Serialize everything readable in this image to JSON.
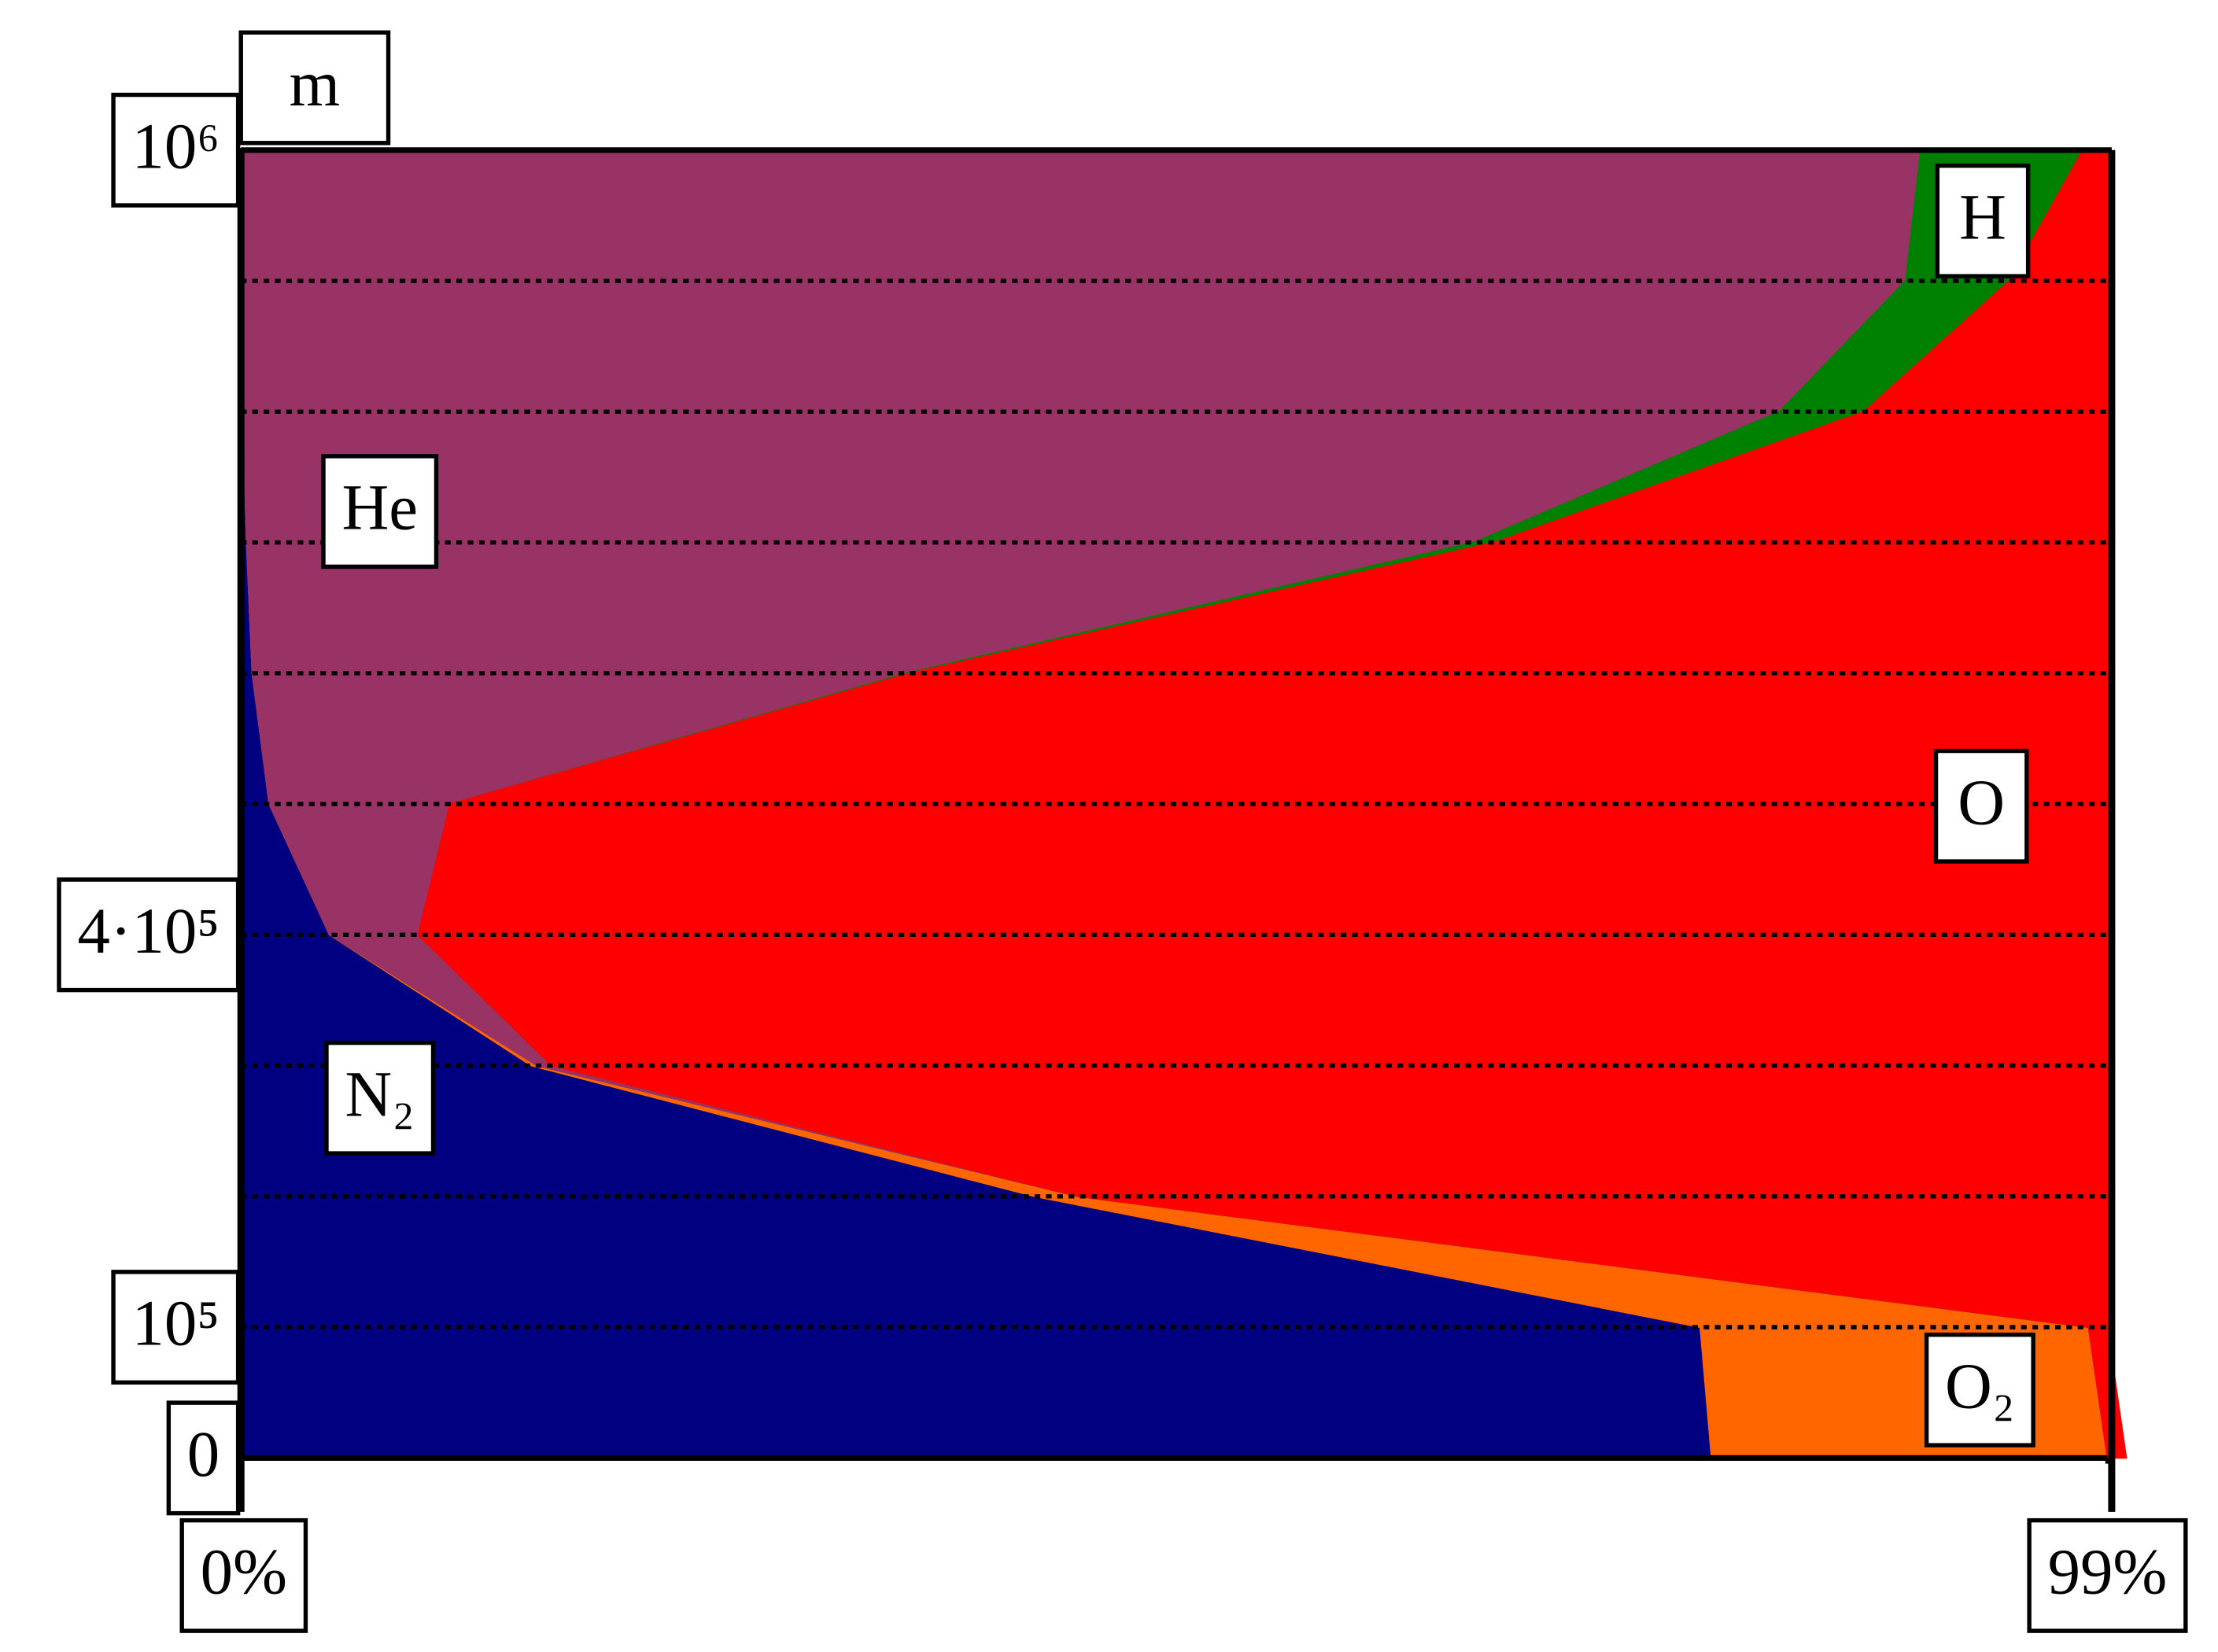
{
  "chart_data": {
    "type": "area",
    "stacked": true,
    "orientation": "horizontal",
    "y_unit_label": "m",
    "y": [
      0,
      100000,
      200000,
      300000,
      400000,
      500000,
      600000,
      700000,
      800000,
      900000,
      1000000
    ],
    "series": [
      {
        "name": "N₂",
        "color": "#000080",
        "values": [
          78.0,
          77.4,
          42.1,
          15.4,
          4.7,
          1.5,
          0.6,
          0.3,
          0.1,
          0,
          0
        ]
      },
      {
        "name": "O₂",
        "color": "#ff6600",
        "values": [
          21.0,
          20.6,
          2.3,
          0.3,
          0,
          0,
          0,
          0,
          0,
          0,
          0
        ]
      },
      {
        "name": "He",
        "color": "#993366",
        "values": [
          0,
          0,
          0,
          0.8,
          4.7,
          9.6,
          34.7,
          65.1,
          81.5,
          88.3,
          89.1
        ]
      },
      {
        "name": "H",
        "color": "#008000",
        "values": [
          0,
          0,
          0,
          0,
          0,
          0,
          0.2,
          1.1,
          4.5,
          5.5,
          8.6
        ]
      },
      {
        "name": "O",
        "color": "#ff0000",
        "values": [
          1.0,
          1.0,
          54.6,
          82.5,
          89.6,
          87.9,
          63.5,
          32.5,
          12.9,
          5.2,
          1.3
        ]
      }
    ],
    "xlim": [
      0,
      99
    ],
    "xticks": [
      {
        "value": 0,
        "label": "0%"
      },
      {
        "value": 99,
        "label": "99%"
      }
    ],
    "ylim": [
      0,
      1000000
    ],
    "yticks": [
      0,
      {
        "value": 100000,
        "label": "10⁵"
      },
      {
        "value": 400000,
        "label": "4·10⁵"
      },
      {
        "value": 1000000,
        "label": "10⁶"
      }
    ],
    "grid": true,
    "grid_step": 100000
  }
}
